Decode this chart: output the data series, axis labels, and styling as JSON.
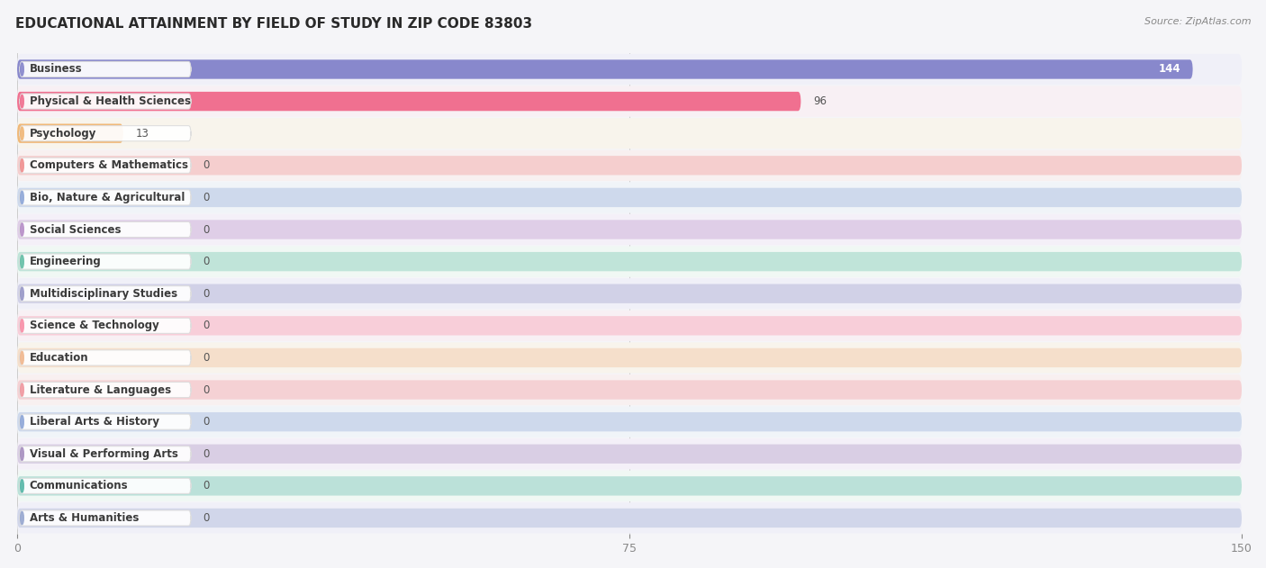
{
  "title": "EDUCATIONAL ATTAINMENT BY FIELD OF STUDY IN ZIP CODE 83803",
  "source": "Source: ZipAtlas.com",
  "categories": [
    "Business",
    "Physical & Health Sciences",
    "Psychology",
    "Computers & Mathematics",
    "Bio, Nature & Agricultural",
    "Social Sciences",
    "Engineering",
    "Multidisciplinary Studies",
    "Science & Technology",
    "Education",
    "Literature & Languages",
    "Liberal Arts & History",
    "Visual & Performing Arts",
    "Communications",
    "Arts & Humanities"
  ],
  "values": [
    144,
    96,
    13,
    0,
    0,
    0,
    0,
    0,
    0,
    0,
    0,
    0,
    0,
    0,
    0
  ],
  "bar_colors": [
    "#8888cc",
    "#f07090",
    "#f0b878",
    "#f09090",
    "#90a8d8",
    "#b890c8",
    "#68c0a8",
    "#9898c8",
    "#f890a8",
    "#f0b890",
    "#f098a0",
    "#90a8d8",
    "#a890c0",
    "#58b8a8",
    "#98a8d0"
  ],
  "row_bg_colors": [
    "#f0f0f8",
    "#f8f0f4",
    "#f8f4ec",
    "#f8f0f0",
    "#f0f4f8",
    "#f4f0f8",
    "#f0f8f4",
    "#f0f0f8",
    "#f8f0f4",
    "#f8f4ec",
    "#f8f0f0",
    "#f0f4f8",
    "#f4f0f8",
    "#f0f8f4",
    "#f0f0f8"
  ],
  "xlim": [
    0,
    150
  ],
  "xticks": [
    0,
    75,
    150
  ],
  "background_color": "#f5f5f8",
  "title_fontsize": 11,
  "source_fontsize": 8,
  "label_fontsize": 8.5,
  "value_fontsize": 8.5
}
